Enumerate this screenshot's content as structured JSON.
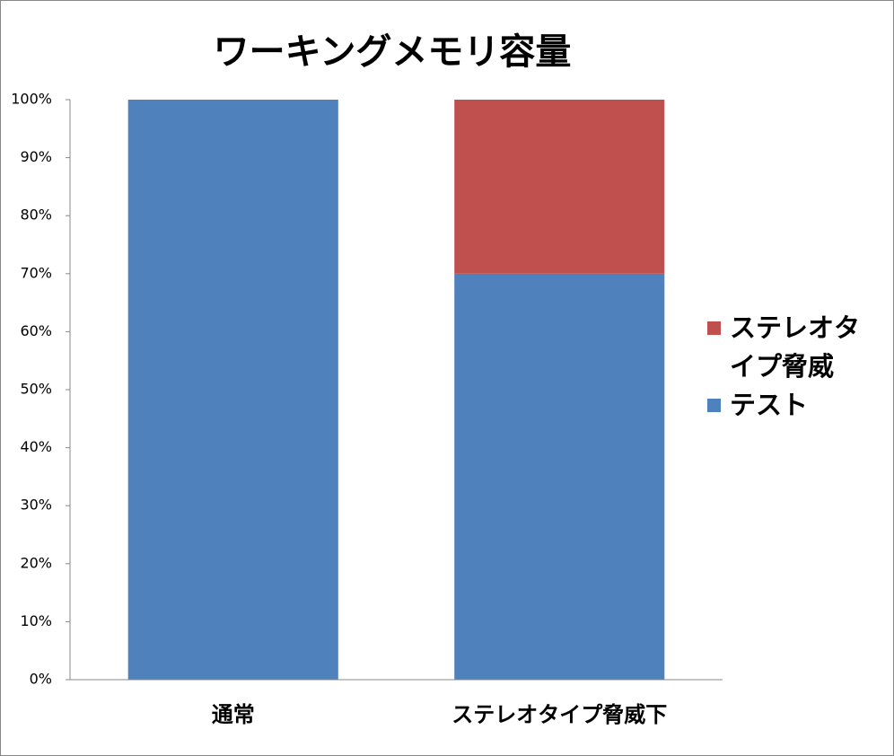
{
  "chart_data": {
    "type": "stacked-bar",
    "title": "ワーキングメモリ容量",
    "categories": [
      "通常",
      "ステレオタイプ脅威下"
    ],
    "series": [
      {
        "name": "テスト",
        "color": "#4f81bd",
        "values": [
          100,
          70
        ]
      },
      {
        "name": "ステレオタイプ脅威",
        "color": "#c0504d",
        "values": [
          0,
          30
        ]
      }
    ],
    "ylim": [
      0,
      100
    ],
    "yticks": [
      {
        "value": 0,
        "label": "0%"
      },
      {
        "value": 10,
        "label": "10%"
      },
      {
        "value": 20,
        "label": "20%"
      },
      {
        "value": 30,
        "label": "30%"
      },
      {
        "value": 40,
        "label": "40%"
      },
      {
        "value": 50,
        "label": "50%"
      },
      {
        "value": 60,
        "label": "60%"
      },
      {
        "value": 70,
        "label": "70%"
      },
      {
        "value": 80,
        "label": "80%"
      },
      {
        "value": 90,
        "label": "90%"
      },
      {
        "value": 100,
        "label": "100%"
      }
    ],
    "legend": "right"
  }
}
